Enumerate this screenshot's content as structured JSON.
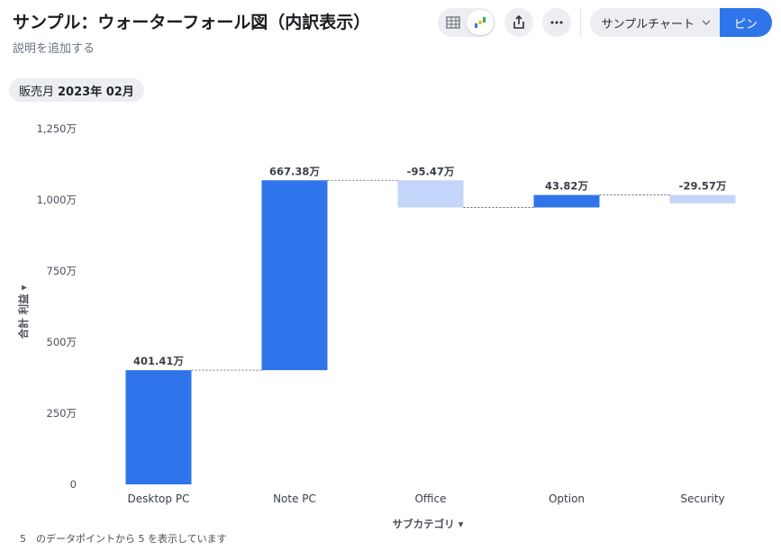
{
  "header": {
    "title": "サンプル：ウォーターフォール図（内訳表示）",
    "subtitle": "説明を追加する",
    "view_toggle": {
      "table_icon": "table-icon",
      "chart_icon": "waterfall-chart-icon",
      "active": "chart"
    },
    "share_icon": "share-icon",
    "more_icon": "more-horizontal-icon",
    "select_label": "サンプルチャート",
    "pin_label": "ピン"
  },
  "filter": {
    "label": "販売月",
    "value": "2023年 02月"
  },
  "footer_text": "5　のデータポイントから 5 を表示しています",
  "colors": {
    "increase": "#2f74ea",
    "decrease": "#c3d5f8",
    "accent": "#2f74ea"
  },
  "chart_data": {
    "type": "bar",
    "subtype": "waterfall",
    "categories": [
      "Desktop PC",
      "Note PC",
      "Office",
      "Option",
      "Security"
    ],
    "values": [
      401.41,
      667.38,
      -95.47,
      43.82,
      -29.57
    ],
    "data_labels": [
      "401.41万",
      "667.38万",
      "-95.47万",
      "43.82万",
      "-29.57万"
    ],
    "xlabel": "サブカテゴリ",
    "ylabel": "合計 利益",
    "ylim": [
      0,
      1250
    ],
    "yticks": [
      0,
      250,
      500,
      750,
      1000,
      1250
    ],
    "ytick_labels": [
      "0",
      "250万",
      "500万",
      "750万",
      "1,000万",
      "1,250万"
    ],
    "connectors": true,
    "grid": false,
    "legend": "none"
  }
}
